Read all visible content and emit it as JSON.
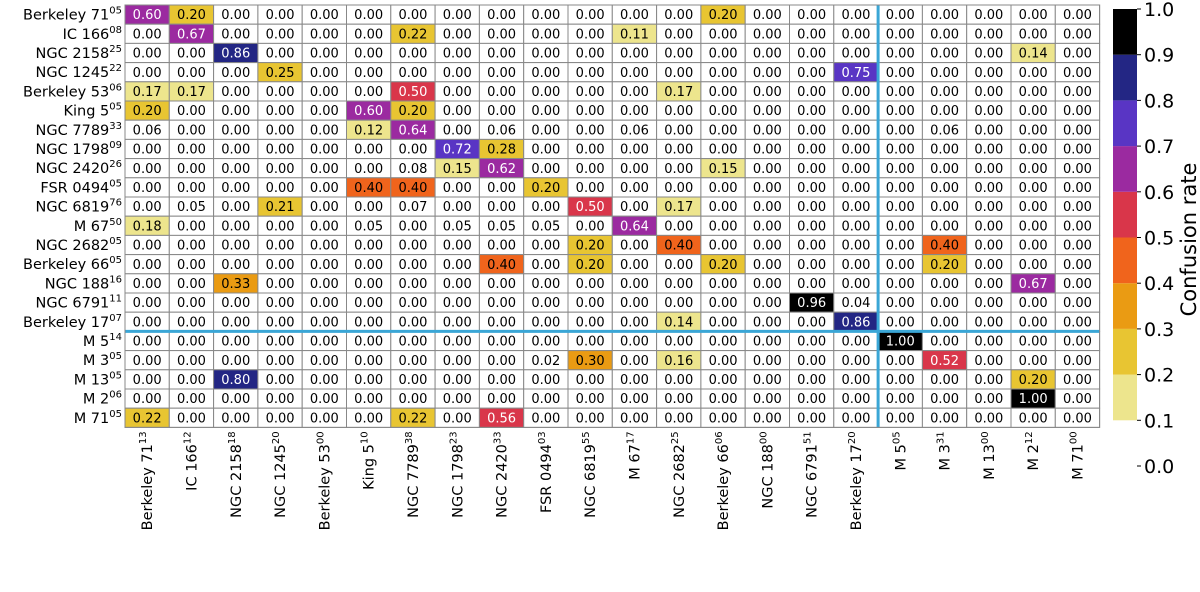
{
  "chart_data": {
    "type": "heatmap",
    "title": "",
    "rows": [
      {
        "name": "Berkeley 71",
        "sup": "05"
      },
      {
        "name": "IC 166",
        "sup": "08"
      },
      {
        "name": "NGC 2158",
        "sup": "25"
      },
      {
        "name": "NGC 1245",
        "sup": "22"
      },
      {
        "name": "Berkeley 53",
        "sup": "06"
      },
      {
        "name": "King 5",
        "sup": "05"
      },
      {
        "name": "NGC 7789",
        "sup": "33"
      },
      {
        "name": "NGC 1798",
        "sup": "09"
      },
      {
        "name": "NGC 2420",
        "sup": "26"
      },
      {
        "name": "FSR 0494",
        "sup": "05"
      },
      {
        "name": "NGC 6819",
        "sup": "76"
      },
      {
        "name": "M 67",
        "sup": "50"
      },
      {
        "name": "NGC 2682",
        "sup": "05"
      },
      {
        "name": "Berkeley 66",
        "sup": "05"
      },
      {
        "name": "NGC 188",
        "sup": "16"
      },
      {
        "name": "NGC 6791",
        "sup": "11"
      },
      {
        "name": "Berkeley 17",
        "sup": "07"
      },
      {
        "name": "M 5",
        "sup": "14"
      },
      {
        "name": "M 3",
        "sup": "05"
      },
      {
        "name": "M 13",
        "sup": "05"
      },
      {
        "name": "M 2",
        "sup": "06"
      },
      {
        "name": "M 71",
        "sup": "05"
      }
    ],
    "columns": [
      {
        "name": "Berkeley 71",
        "sup": "13"
      },
      {
        "name": "IC 166",
        "sup": "12"
      },
      {
        "name": "NGC 2158",
        "sup": "18"
      },
      {
        "name": "NGC 1245",
        "sup": "20"
      },
      {
        "name": "Berkeley 53",
        "sup": "00"
      },
      {
        "name": "King 5",
        "sup": "10"
      },
      {
        "name": "NGC 7789",
        "sup": "38"
      },
      {
        "name": "NGC 1798",
        "sup": "23"
      },
      {
        "name": "NGC 2420",
        "sup": "33"
      },
      {
        "name": "FSR 0494",
        "sup": "03"
      },
      {
        "name": "NGC 6819",
        "sup": "55"
      },
      {
        "name": "M 67",
        "sup": "17"
      },
      {
        "name": "NGC 2682",
        "sup": "25"
      },
      {
        "name": "Berkeley 66",
        "sup": "06"
      },
      {
        "name": "NGC 188",
        "sup": "00"
      },
      {
        "name": "NGC 6791",
        "sup": "51"
      },
      {
        "name": "Berkeley 17",
        "sup": "20"
      },
      {
        "name": "M 5",
        "sup": "05"
      },
      {
        "name": "M 3",
        "sup": "31"
      },
      {
        "name": "M 13",
        "sup": "00"
      },
      {
        "name": "M 2",
        "sup": "12"
      },
      {
        "name": "M 71",
        "sup": "00"
      }
    ],
    "values": [
      [
        0.6,
        0.2,
        0.0,
        0.0,
        0.0,
        0.0,
        0.0,
        0.0,
        0.0,
        0.0,
        0.0,
        0.0,
        0.0,
        0.2,
        0.0,
        0.0,
        0.0,
        0.0,
        0.0,
        0.0,
        0.0,
        0.0
      ],
      [
        0.0,
        0.67,
        0.0,
        0.0,
        0.0,
        0.0,
        0.22,
        0.0,
        0.0,
        0.0,
        0.0,
        0.11,
        0.0,
        0.0,
        0.0,
        0.0,
        0.0,
        0.0,
        0.0,
        0.0,
        0.0,
        0.0
      ],
      [
        0.0,
        0.0,
        0.86,
        0.0,
        0.0,
        0.0,
        0.0,
        0.0,
        0.0,
        0.0,
        0.0,
        0.0,
        0.0,
        0.0,
        0.0,
        0.0,
        0.0,
        0.0,
        0.0,
        0.0,
        0.14,
        0.0
      ],
      [
        0.0,
        0.0,
        0.0,
        0.25,
        0.0,
        0.0,
        0.0,
        0.0,
        0.0,
        0.0,
        0.0,
        0.0,
        0.0,
        0.0,
        0.0,
        0.0,
        0.75,
        0.0,
        0.0,
        0.0,
        0.0,
        0.0
      ],
      [
        0.17,
        0.17,
        0.0,
        0.0,
        0.0,
        0.0,
        0.5,
        0.0,
        0.0,
        0.0,
        0.0,
        0.0,
        0.17,
        0.0,
        0.0,
        0.0,
        0.0,
        0.0,
        0.0,
        0.0,
        0.0,
        0.0
      ],
      [
        0.2,
        0.0,
        0.0,
        0.0,
        0.0,
        0.6,
        0.2,
        0.0,
        0.0,
        0.0,
        0.0,
        0.0,
        0.0,
        0.0,
        0.0,
        0.0,
        0.0,
        0.0,
        0.0,
        0.0,
        0.0,
        0.0
      ],
      [
        0.06,
        0.0,
        0.0,
        0.0,
        0.0,
        0.12,
        0.64,
        0.0,
        0.06,
        0.0,
        0.0,
        0.06,
        0.0,
        0.0,
        0.0,
        0.0,
        0.0,
        0.0,
        0.06,
        0.0,
        0.0,
        0.0
      ],
      [
        0.0,
        0.0,
        0.0,
        0.0,
        0.0,
        0.0,
        0.0,
        0.72,
        0.28,
        0.0,
        0.0,
        0.0,
        0.0,
        0.0,
        0.0,
        0.0,
        0.0,
        0.0,
        0.0,
        0.0,
        0.0,
        0.0
      ],
      [
        0.0,
        0.0,
        0.0,
        0.0,
        0.0,
        0.0,
        0.08,
        0.15,
        0.62,
        0.0,
        0.0,
        0.0,
        0.0,
        0.15,
        0.0,
        0.0,
        0.0,
        0.0,
        0.0,
        0.0,
        0.0,
        0.0
      ],
      [
        0.0,
        0.0,
        0.0,
        0.0,
        0.0,
        0.4,
        0.4,
        0.0,
        0.0,
        0.2,
        0.0,
        0.0,
        0.0,
        0.0,
        0.0,
        0.0,
        0.0,
        0.0,
        0.0,
        0.0,
        0.0,
        0.0
      ],
      [
        0.0,
        0.05,
        0.0,
        0.21,
        0.0,
        0.0,
        0.07,
        0.0,
        0.0,
        0.0,
        0.5,
        0.0,
        0.17,
        0.0,
        0.0,
        0.0,
        0.0,
        0.0,
        0.0,
        0.0,
        0.0,
        0.0
      ],
      [
        0.18,
        0.0,
        0.0,
        0.0,
        0.0,
        0.05,
        0.0,
        0.05,
        0.05,
        0.05,
        0.0,
        0.64,
        0.0,
        0.0,
        0.0,
        0.0,
        0.0,
        0.0,
        0.0,
        0.0,
        0.0,
        0.0
      ],
      [
        0.0,
        0.0,
        0.0,
        0.0,
        0.0,
        0.0,
        0.0,
        0.0,
        0.0,
        0.0,
        0.2,
        0.0,
        0.4,
        0.0,
        0.0,
        0.0,
        0.0,
        0.0,
        0.4,
        0.0,
        0.0,
        0.0
      ],
      [
        0.0,
        0.0,
        0.0,
        0.0,
        0.0,
        0.0,
        0.0,
        0.0,
        0.4,
        0.0,
        0.2,
        0.0,
        0.0,
        0.2,
        0.0,
        0.0,
        0.0,
        0.0,
        0.2,
        0.0,
        0.0,
        0.0
      ],
      [
        0.0,
        0.0,
        0.33,
        0.0,
        0.0,
        0.0,
        0.0,
        0.0,
        0.0,
        0.0,
        0.0,
        0.0,
        0.0,
        0.0,
        0.0,
        0.0,
        0.0,
        0.0,
        0.0,
        0.0,
        0.67,
        0.0
      ],
      [
        0.0,
        0.0,
        0.0,
        0.0,
        0.0,
        0.0,
        0.0,
        0.0,
        0.0,
        0.0,
        0.0,
        0.0,
        0.0,
        0.0,
        0.0,
        0.96,
        0.04,
        0.0,
        0.0,
        0.0,
        0.0,
        0.0
      ],
      [
        0.0,
        0.0,
        0.0,
        0.0,
        0.0,
        0.0,
        0.0,
        0.0,
        0.0,
        0.0,
        0.0,
        0.0,
        0.14,
        0.0,
        0.0,
        0.0,
        0.86,
        0.0,
        0.0,
        0.0,
        0.0,
        0.0
      ],
      [
        0.0,
        0.0,
        0.0,
        0.0,
        0.0,
        0.0,
        0.0,
        0.0,
        0.0,
        0.0,
        0.0,
        0.0,
        0.0,
        0.0,
        0.0,
        0.0,
        0.0,
        1.0,
        0.0,
        0.0,
        0.0,
        0.0
      ],
      [
        0.0,
        0.0,
        0.0,
        0.0,
        0.0,
        0.0,
        0.0,
        0.0,
        0.0,
        0.02,
        0.3,
        0.0,
        0.16,
        0.0,
        0.0,
        0.0,
        0.0,
        0.0,
        0.52,
        0.0,
        0.0,
        0.0
      ],
      [
        0.0,
        0.0,
        0.8,
        0.0,
        0.0,
        0.0,
        0.0,
        0.0,
        0.0,
        0.0,
        0.0,
        0.0,
        0.0,
        0.0,
        0.0,
        0.0,
        0.0,
        0.0,
        0.0,
        0.0,
        0.2,
        0.0
      ],
      [
        0.0,
        0.0,
        0.0,
        0.0,
        0.0,
        0.0,
        0.0,
        0.0,
        0.0,
        0.0,
        0.0,
        0.0,
        0.0,
        0.0,
        0.0,
        0.0,
        0.0,
        0.0,
        0.0,
        0.0,
        1.0,
        0.0
      ],
      [
        0.22,
        0.0,
        0.0,
        0.0,
        0.0,
        0.0,
        0.22,
        0.0,
        0.56,
        0.0,
        0.0,
        0.0,
        0.0,
        0.0,
        0.0,
        0.0,
        0.0,
        0.0,
        0.0,
        0.0,
        0.0,
        0.0
      ]
    ],
    "group_split_index": 17,
    "colorbar": {
      "label": "Confusion rate",
      "range": [
        0.0,
        1.0
      ],
      "ticks": [
        "0.0",
        "0.1",
        "0.2",
        "0.3",
        "0.4",
        "0.5",
        "0.6",
        "0.7",
        "0.8",
        "0.9",
        "1.0"
      ],
      "bins": [
        {
          "from": 0.0,
          "to": 0.1,
          "color": "#ffffff"
        },
        {
          "from": 0.1,
          "to": 0.2,
          "color": "#ede58d"
        },
        {
          "from": 0.2,
          "to": 0.3,
          "color": "#e8c532"
        },
        {
          "from": 0.3,
          "to": 0.4,
          "color": "#ea9b13"
        },
        {
          "from": 0.4,
          "to": 0.5,
          "color": "#f0641c"
        },
        {
          "from": 0.5,
          "to": 0.6,
          "color": "#d9364a"
        },
        {
          "from": 0.6,
          "to": 0.7,
          "color": "#9b2aa0"
        },
        {
          "from": 0.7,
          "to": 0.8,
          "color": "#5935c4"
        },
        {
          "from": 0.8,
          "to": 0.9,
          "color": "#232684"
        },
        {
          "from": 0.9,
          "to": 1.0,
          "color": "#000000"
        }
      ]
    },
    "colors": {
      "separator": "#3aa6d6",
      "grid": "#888888"
    }
  }
}
